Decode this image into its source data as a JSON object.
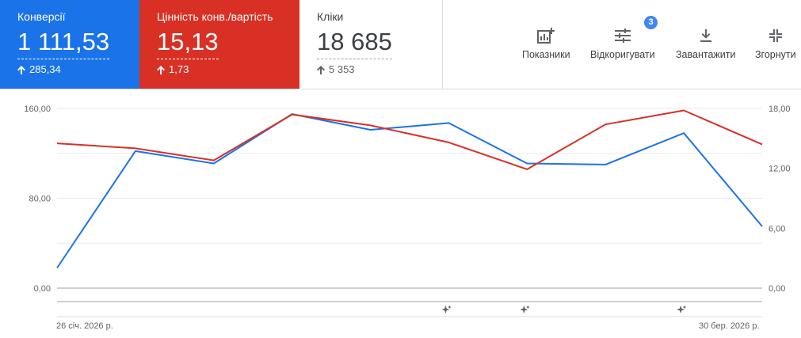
{
  "scorecards": [
    {
      "label": "Конверсії",
      "value": "1 111,53",
      "delta": "285,34",
      "color": "#1a73e8"
    },
    {
      "label": "Цінність конв./вартість",
      "value": "15,13",
      "delta": "1,73",
      "color": "#d93025"
    },
    {
      "label": "Кліки",
      "value": "18 685",
      "delta": "5 353"
    }
  ],
  "toolbar": {
    "metrics_label": "Показники",
    "adjust_label": "Відкоригувати",
    "adjust_badge": "3",
    "download_label": "Завантажити",
    "collapse_label": "Згорнути"
  },
  "icons": {
    "metrics": "add-chart-icon",
    "adjust": "tune-icon",
    "download": "download-icon",
    "collapse": "collapse-icon",
    "delta": "arrow-up-icon",
    "note": "annotation-sparkle-icon"
  },
  "chart_data": {
    "type": "line",
    "x_start_label": "26 січ. 2026 р.",
    "x_end_label": "30 бер. 2026 р.",
    "left_axis": {
      "ticks": [
        "0,00",
        "80,00",
        "160,00"
      ],
      "range": [
        0,
        160
      ]
    },
    "right_axis": {
      "ticks": [
        "0,00",
        "6,00",
        "12,00",
        "18,00"
      ],
      "range": [
        0,
        18
      ]
    },
    "series": [
      {
        "color": "#1a73e8",
        "axis": "left",
        "values": [
          18,
          122,
          111,
          155,
          141,
          147,
          111,
          110,
          138,
          55
        ]
      },
      {
        "color": "#d93025",
        "axis": "right",
        "values": [
          14.5,
          14,
          12.8,
          17.4,
          16.3,
          14.6,
          11.9,
          16.4,
          17.8,
          14.4
        ]
      }
    ],
    "annotation_points": [
      5,
      6,
      8
    ]
  }
}
